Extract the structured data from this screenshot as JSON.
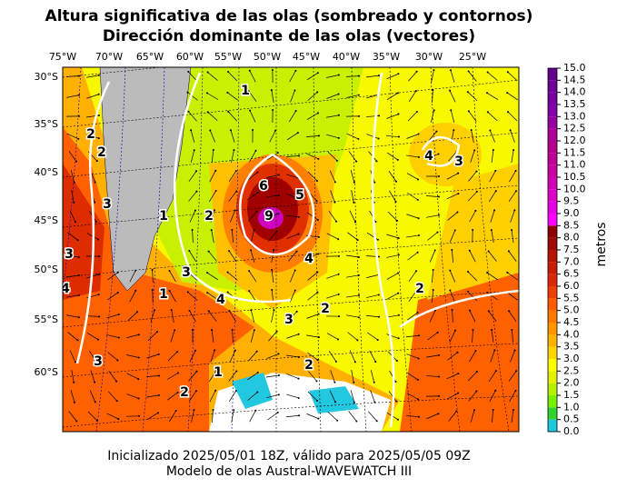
{
  "title": [
    "Altura significativa de las olas (sombreado y contornos)",
    "Dirección dominante de las olas (vectores)"
  ],
  "map": {
    "lon_labels": [
      "75°W",
      "70°W",
      "65°W",
      "60°W",
      "55°W",
      "50°W",
      "45°W",
      "40°W",
      "35°W",
      "30°W",
      "25°W"
    ],
    "lat_labels": [
      "30°S",
      "35°S",
      "40°S",
      "45°S",
      "50°S",
      "55°S",
      "60°S"
    ],
    "contour_labels": [
      "2",
      "2",
      "3",
      "1",
      "2",
      "5",
      "6",
      "9",
      "4",
      "3",
      "1",
      "4",
      "3",
      "2",
      "4",
      "3",
      "2",
      "1",
      "2",
      "4",
      "3",
      "1",
      "3",
      "2"
    ]
  },
  "colorbar": {
    "label": "metros",
    "ticks": [
      {
        "value": 0,
        "label": "0.0"
      },
      0.5,
      {
        "value": 1,
        "label": "1.0"
      },
      1.5,
      {
        "value": 2,
        "label": "2.0"
      },
      2.5,
      {
        "value": 3,
        "label": "3.0"
      },
      3.5,
      {
        "value": 4,
        "label": "4.0"
      },
      4.5,
      {
        "value": 5,
        "label": "5.0"
      },
      5.5,
      {
        "value": 6,
        "label": "6.0"
      },
      6.5,
      {
        "value": 7,
        "label": "7.0"
      },
      7.5,
      {
        "value": 8,
        "label": "8.0"
      },
      8.5,
      {
        "value": 9,
        "label": "9.0"
      },
      9.5,
      {
        "value": 10,
        "label": "10.0"
      },
      10.5,
      {
        "value": 11,
        "label": "11.0"
      },
      11.5,
      {
        "value": 12,
        "label": "12.0"
      },
      12.5,
      {
        "value": 13,
        "label": "13.0"
      },
      13.5,
      {
        "value": 14,
        "label": "14.0"
      },
      14.5,
      {
        "value": 15,
        "label": "15.0"
      }
    ],
    "colors": [
      "#1ec8dc",
      "#32d232",
      "#78f000",
      "#b4f000",
      "#e6f000",
      "#ffff00",
      "#ffd700",
      "#ffb400",
      "#ff9600",
      "#ff7800",
      "#ff5a00",
      "#f03c00",
      "#dc2800",
      "#c81e00",
      "#b41400",
      "#a00a00",
      "#8c0000",
      "#ff00ff",
      "#e600e6",
      "#dc00c8",
      "#d200b4",
      "#c800a0",
      "#be0096",
      "#b4008c",
      "#aa0096",
      "#9600a0",
      "#8200aa",
      "#7800a0",
      "#6e0096",
      "#64008c"
    ]
  },
  "footer": [
    "Inicializado 2025/05/01 18Z, válido para 2025/05/05 09Z",
    "Modelo de olas Austral-WAVEWATCH III"
  ]
}
